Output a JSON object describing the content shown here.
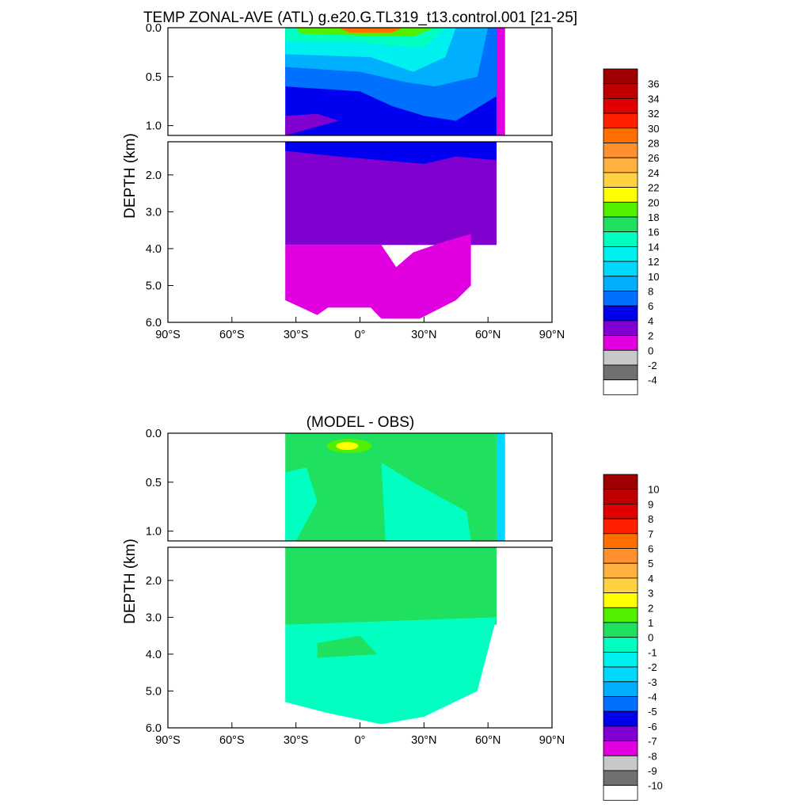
{
  "figure": {
    "top_title": "TEMP ZONAL-AVE (ATL) g.e20.G.TL319_t13.control.001 [21-25]",
    "bottom_title": "(MODEL - OBS)"
  },
  "chart_data": [
    {
      "type": "heatmap",
      "title": "TEMP ZONAL-AVE (ATL) g.e20.G.TL319_t13.control.001 [21-25]",
      "ylabel": "DEPTH (km)",
      "xlabel": "",
      "x_range": [
        -90,
        90
      ],
      "y_range_km": [
        0,
        6
      ],
      "y_inverted": true,
      "y_scale": "split: upper panel 0-1.1 km stretched, lower panel 1.1-6 km",
      "x_ticks": [
        "90°S",
        "60°S",
        "30°S",
        "0°",
        "30°N",
        "60°N",
        "90°N"
      ],
      "y_ticks_upper": [
        "0.0",
        "0.5",
        "1.0"
      ],
      "y_ticks_lower": [
        "2.0",
        "3.0",
        "4.0",
        "5.0",
        "6.0"
      ],
      "colorbar_labels": [
        "36",
        "34",
        "32",
        "30",
        "28",
        "26",
        "24",
        "22",
        "20",
        "18",
        "16",
        "14",
        "12",
        "10",
        "8",
        "6",
        "4",
        "2",
        "0",
        "-2",
        "-4"
      ],
      "colorbar_colors": [
        "#a00000",
        "#c00000",
        "#e00000",
        "#ff2000",
        "#ff7000",
        "#ff9030",
        "#ffb040",
        "#ffd040",
        "#ffff00",
        "#50f000",
        "#20e060",
        "#00ffc0",
        "#00f0f0",
        "#00d8ff",
        "#00b0ff",
        "#0070ff",
        "#0000f0",
        "#8000d0",
        "#e000e0",
        "#c8c8c8",
        "#707070",
        "#ffffff"
      ],
      "data_extent": {
        "lon_min": -35,
        "lon_max": 68
      },
      "notes": "Warmest water (26-28) near surface at equator; abyssal water 0-4 in deep ocean"
    },
    {
      "type": "heatmap",
      "title": "(MODEL - OBS)",
      "ylabel": "DEPTH (km)",
      "xlabel": "",
      "x_range": [
        -90,
        90
      ],
      "y_range_km": [
        0,
        6
      ],
      "y_inverted": true,
      "x_ticks": [
        "90°S",
        "60°S",
        "30°S",
        "0°",
        "30°N",
        "60°N",
        "90°N"
      ],
      "y_ticks_upper": [
        "0.0",
        "0.5",
        "1.0"
      ],
      "y_ticks_lower": [
        "2.0",
        "3.0",
        "4.0",
        "5.0",
        "6.0"
      ],
      "colorbar_labels": [
        "10",
        "9",
        "8",
        "7",
        "6",
        "5",
        "4",
        "3",
        "2",
        "1",
        "0",
        "-1",
        "-2",
        "-3",
        "-4",
        "-5",
        "-6",
        "-7",
        "-8",
        "-9",
        "-10"
      ],
      "colorbar_colors": [
        "#a00000",
        "#c00000",
        "#e00000",
        "#ff2000",
        "#ff7000",
        "#ff9030",
        "#ffb040",
        "#ffd040",
        "#ffff00",
        "#50f000",
        "#20e060",
        "#00ffc0",
        "#00f0f0",
        "#00d8ff",
        "#00b0ff",
        "#0070ff",
        "#0000f0",
        "#8000d0",
        "#e000e0",
        "#c8c8c8",
        "#707070",
        "#ffffff"
      ],
      "data_extent": {
        "lon_min": -35,
        "lon_max": 68
      },
      "notes": "Mostly within +/-1; small warm bias (2-3) near surface around 10S-5N"
    }
  ]
}
